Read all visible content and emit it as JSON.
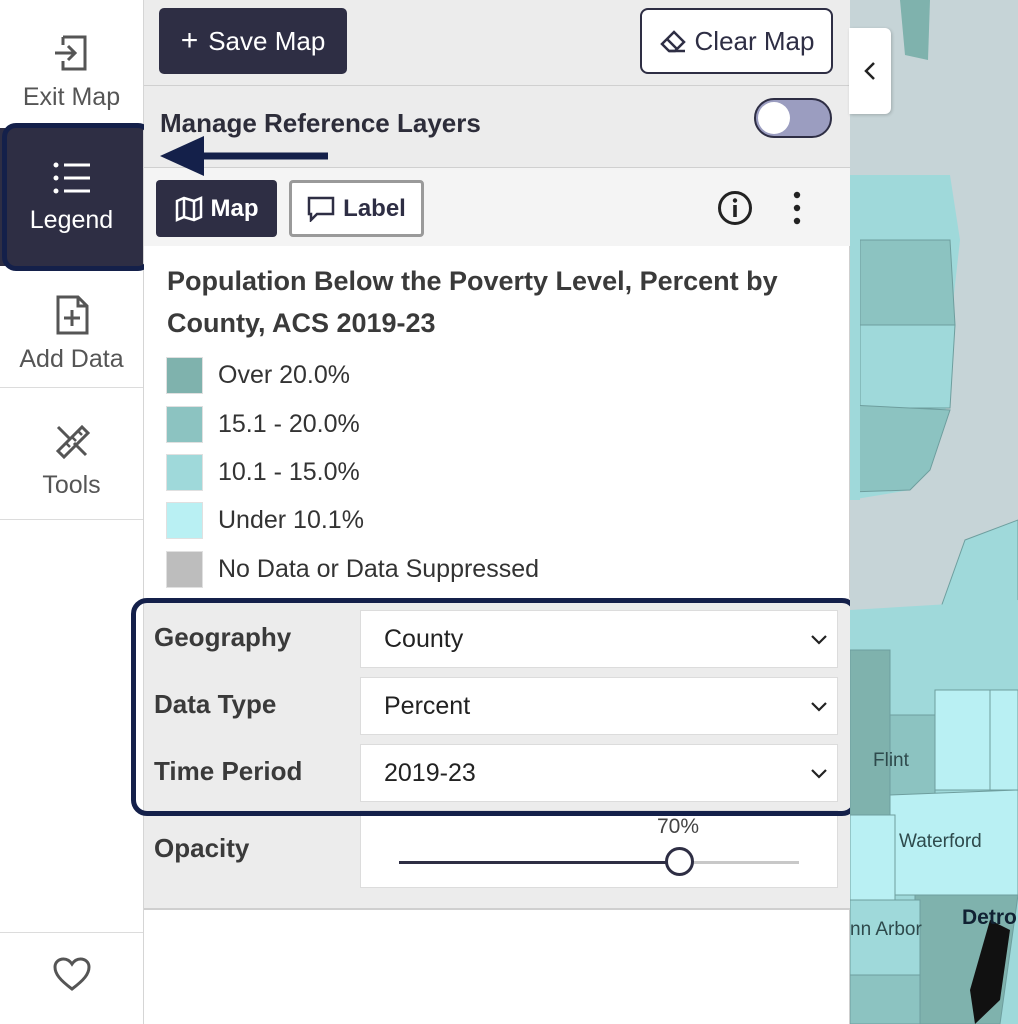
{
  "rail": {
    "exit_label": "Exit Map",
    "legend_label": "Legend",
    "add_data_label": "Add Data",
    "tools_label": "Tools",
    "favorite_icon": "heart-icon"
  },
  "toolbar": {
    "save_label": "Save Map",
    "clear_label": "Clear Map"
  },
  "reference_layers": {
    "title": "Manage Reference Layers",
    "enabled": false
  },
  "tabs": {
    "map_label": "Map",
    "label_label": "Label"
  },
  "legend": {
    "title": "Population Below the Poverty Level, Percent by County, ACS 2019-23",
    "items": [
      {
        "label": "Over 20.0%",
        "color": "#7fb2ad"
      },
      {
        "label": "15.1 - 20.0%",
        "color": "#8cc3c1"
      },
      {
        "label": "10.1 - 15.0%",
        "color": "#9fd9da"
      },
      {
        "label": "Under 10.1%",
        "color": "#b9f0f3"
      },
      {
        "label": "No Data or Data Suppressed",
        "color": "#bdbdbd"
      }
    ]
  },
  "filters": {
    "geography": {
      "label": "Geography",
      "value": "County"
    },
    "data_type": {
      "label": "Data Type",
      "value": "Percent"
    },
    "time_period": {
      "label": "Time Period",
      "value": "2019-23"
    }
  },
  "opacity": {
    "label": "Opacity",
    "value_text": "70%",
    "value": 0.7
  },
  "map": {
    "labels": [
      "Flint",
      "Waterford",
      "nn Arbor",
      "Detro"
    ]
  },
  "colors": {
    "primary": "#2e2e44",
    "highlight": "#14204a"
  }
}
